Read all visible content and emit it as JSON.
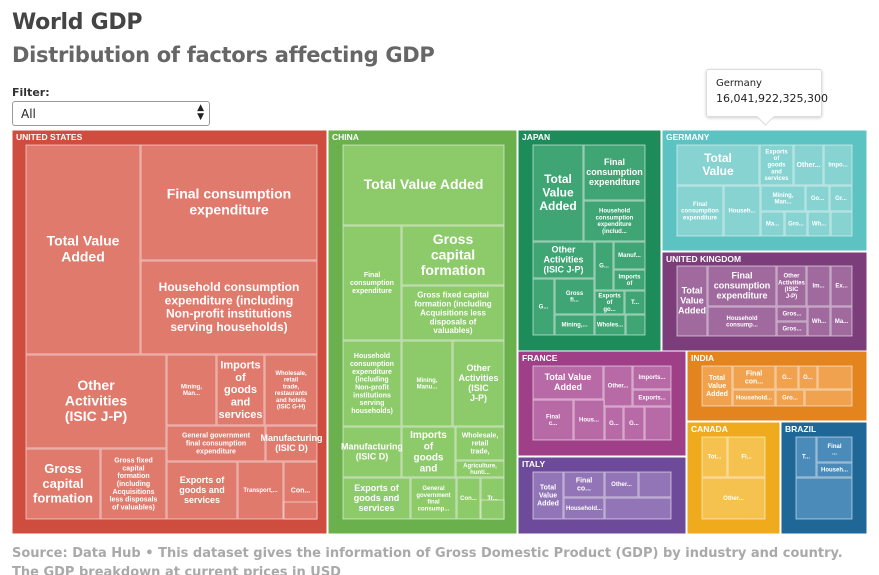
{
  "header": {
    "title": "World GDP",
    "subtitle": "Distribution of factors affecting GDP"
  },
  "filter": {
    "label": "Filter:",
    "selected": "All"
  },
  "tooltip": {
    "name": "Germany",
    "value": "16,041,922,325,300"
  },
  "footer": {
    "text": "Source: Data Hub • This dataset gives the information of Gross Domestic Product (GDP) by industry and country. The GDP breakdown at current prices in USD"
  },
  "chart_data": {
    "type": "treemap",
    "groups": [
      {
        "name": "UNITED STATES",
        "color": "#cf4d3f",
        "cell_color": "#e07a6c"
      },
      {
        "name": "CHINA",
        "color": "#6ab04c",
        "cell_color": "#8cca6a"
      },
      {
        "name": "JAPAN",
        "color": "#1e8c5a",
        "cell_color": "#3fa574"
      },
      {
        "name": "GERMANY",
        "color": "#5cc2c2",
        "cell_color": "#86d3d2"
      },
      {
        "name": "UNITED KINGDOM",
        "color": "#7c3e7b",
        "cell_color": "#a06a9e"
      },
      {
        "name": "FRANCE",
        "color": "#9e3f88",
        "cell_color": "#b86aa6"
      },
      {
        "name": "INDIA",
        "color": "#e3841f",
        "cell_color": "#f0a24e"
      },
      {
        "name": "ITALY",
        "color": "#6e4a9a",
        "cell_color": "#9275b6"
      },
      {
        "name": "CANADA",
        "color": "#efab1c",
        "cell_color": "#f5c14f"
      },
      {
        "name": "BRAZIL",
        "color": "#1f6796",
        "cell_color": "#4a8bb9"
      }
    ],
    "labels": {
      "UNITED STATES": [
        "Total Value Added",
        "Final consumption expenditure",
        "Household consumption expenditure (including Non-profit institutions serving households)",
        "Other Activities (ISIC J-P)",
        "Mining, Man...",
        "Imports of goods and services",
        "Wholesale, retail trade, restaurants and hotels (ISIC G-H)",
        "General government final consumption expenditure",
        "Manufacturing (ISIC D)",
        "Gross capital formation",
        "Gross fixed capital formation (including Acquisitions less disposals of valuables)",
        "Exports of goods and services",
        "Transport,...",
        "Con..."
      ],
      "CHINA": [
        "Total Value Added",
        "Final consumption expenditure",
        "Gross capital formation",
        "Gross fixed capital formation (including Acquisitions less disposals of valuables)",
        "Household consumption expenditure (including Non-profit institutions serving households)",
        "Mining, Manu...",
        "Other Activities (ISIC J-P)",
        "Manufacturing (ISIC D)",
        "Imports of goods and services",
        "Wholesale, retail trade, restaura...",
        "Agriculture, hunti...",
        "Exports of goods and services",
        "General government final consump...",
        "Con...",
        "Tr..."
      ],
      "JAPAN": [
        "Total Value Added",
        "Final consumption expenditure",
        "Household consumption expenditure (includ...",
        "Other Activities (ISIC J-P)",
        "G...",
        "Manuf...",
        "Imports of go...",
        "Gross fi...",
        "Exports of go...",
        "T...",
        "G...",
        "Mining,...",
        "Wholes..."
      ],
      "GERMANY": [
        "Total Value Added",
        "Exports of goods and services",
        "Other...",
        "Impo...",
        "Final consumption expenditure",
        "Househ...",
        "Mining, Man...",
        "Go...",
        "Gr...",
        "Ma...",
        "Gro...",
        "Wh..."
      ],
      "UNITED KINGDOM": [
        "Final consumption expenditure",
        "Other Activities (ISIC J-P)",
        "Im...",
        "Ex...",
        "Total Value Added",
        "Household consump...",
        "Gros...",
        "Gros...",
        "Wh...",
        "Ma..."
      ],
      "FRANCE": [
        "Total Value Added",
        "Other...",
        "Imports...",
        "Exports...",
        "Final c...",
        "Hous...",
        "G...",
        "G..."
      ],
      "INDIA": [
        "Total Value Added",
        "Final con...",
        "G...",
        "G...",
        "Household...",
        "Gro..."
      ],
      "ITALY": [
        "Total Value Added",
        "Final co...",
        "Other...",
        "Household..."
      ],
      "CANADA": [
        "Tot...",
        "Fi...",
        "Other..."
      ],
      "BRAZIL": [
        "T...",
        "Final ...",
        "Househ..."
      ]
    }
  }
}
